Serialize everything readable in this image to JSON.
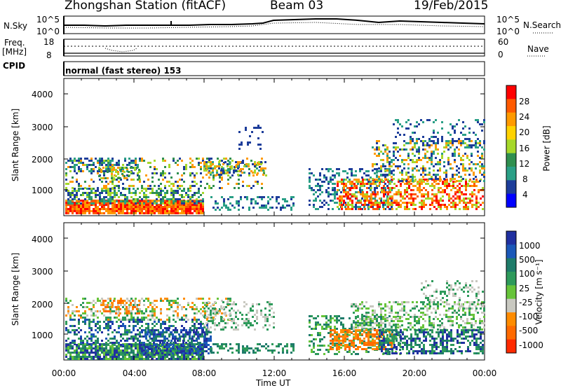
{
  "header": {
    "station": "Zhongshan Station (fitACF)",
    "beam": "Beam 03",
    "date": "19/Feb/2015"
  },
  "top_panels": {
    "nsky_label": "N.Sky",
    "nsky_ticks": [
      "10^5",
      "10^0"
    ],
    "nsearch_label": "N.Search",
    "nsearch_ticks": [
      "10^5",
      "10^0"
    ],
    "freq_label_1": "Freq.",
    "freq_label_2": "[MHz]",
    "freq_ticks": [
      "18",
      "8"
    ],
    "nave_label": "Nave",
    "nave_ticks": [
      "60",
      "0"
    ],
    "cpid_label": "CPID",
    "cpid_value": "normal (fast stereo) 153"
  },
  "chart_data": [
    {
      "type": "heatmap",
      "name": "power-panel",
      "ylabel": "Slant Range [km]",
      "yticks": [
        "4000",
        "3000",
        "2000",
        "1000"
      ],
      "ylim": [
        180,
        4500
      ],
      "colorbar_label": "Power [dB]",
      "colorbar_ticks": [
        "28",
        "24",
        "20",
        "16",
        "12",
        "8",
        "4"
      ],
      "colorbar_colors": [
        "#ff0000",
        "#ff5a00",
        "#ff9a00",
        "#ffd200",
        "#a6d82a",
        "#2f8f4f",
        "#2a9f86",
        "#1d3d9a",
        "#0000ff"
      ]
    },
    {
      "type": "heatmap",
      "name": "velocity-panel",
      "ylabel": "Slant Range [km]",
      "yticks": [
        "4000",
        "3000",
        "2000",
        "1000"
      ],
      "ylim": [
        180,
        4500
      ],
      "colorbar_label": "Velocity [m s⁻¹]",
      "colorbar_ticks": [
        "1000",
        "500",
        "100",
        "25",
        "-25",
        "-100",
        "-500",
        "-1000"
      ],
      "colorbar_colors": [
        "#2030a0",
        "#1b58b8",
        "#1f7c6a",
        "#2e9a5b",
        "#67c43a",
        "#c8c8c0",
        "#ff8c00",
        "#ff6a00",
        "#ff2a00"
      ]
    }
  ],
  "x_axis": {
    "ticks": [
      "00:00",
      "04:00",
      "08:00",
      "12:00",
      "16:00",
      "20:00",
      "00:00"
    ],
    "label": "Time UT"
  }
}
